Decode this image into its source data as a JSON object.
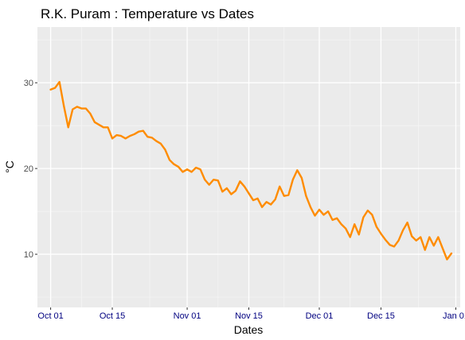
{
  "chart_data": {
    "type": "line",
    "title": "R.K. Puram : Temperature vs Dates",
    "xlabel": "Dates",
    "ylabel": "°C",
    "x_tick_labels": [
      "Oct 01",
      "Oct 15",
      "Nov 01",
      "Nov 15",
      "Dec 01",
      "Dec 15",
      "Jan 01"
    ],
    "y_tick_labels": [
      "10",
      "20",
      "30"
    ],
    "ylim": [
      3.8,
      36.5
    ],
    "xlim": [
      "2017-09-28",
      "2018-01-02"
    ],
    "grid": true,
    "series": [
      {
        "color": "#ff8c00",
        "x": [
          "2017-10-01",
          "2017-10-02",
          "2017-10-03",
          "2017-10-04",
          "2017-10-05",
          "2017-10-06",
          "2017-10-07",
          "2017-10-08",
          "2017-10-09",
          "2017-10-10",
          "2017-10-11",
          "2017-10-12",
          "2017-10-13",
          "2017-10-14",
          "2017-10-15",
          "2017-10-16",
          "2017-10-17",
          "2017-10-18",
          "2017-10-19",
          "2017-10-20",
          "2017-10-21",
          "2017-10-22",
          "2017-10-23",
          "2017-10-24",
          "2017-10-25",
          "2017-10-26",
          "2017-10-27",
          "2017-10-28",
          "2017-10-29",
          "2017-10-30",
          "2017-10-31",
          "2017-11-01",
          "2017-11-02",
          "2017-11-03",
          "2017-11-04",
          "2017-11-05",
          "2017-11-06",
          "2017-11-07",
          "2017-11-08",
          "2017-11-09",
          "2017-11-10",
          "2017-11-11",
          "2017-11-12",
          "2017-11-13",
          "2017-11-14",
          "2017-11-15",
          "2017-11-16",
          "2017-11-17",
          "2017-11-18",
          "2017-11-19",
          "2017-11-20",
          "2017-11-21",
          "2017-11-22",
          "2017-11-23",
          "2017-11-24",
          "2017-11-25",
          "2017-11-26",
          "2017-11-27",
          "2017-11-28",
          "2017-11-29",
          "2017-11-30",
          "2017-12-01",
          "2017-12-02",
          "2017-12-03",
          "2017-12-04",
          "2017-12-05",
          "2017-12-06",
          "2017-12-07",
          "2017-12-08",
          "2017-12-09",
          "2017-12-10",
          "2017-12-11",
          "2017-12-12",
          "2017-12-13",
          "2017-12-14",
          "2017-12-15",
          "2017-12-16",
          "2017-12-17",
          "2017-12-18",
          "2017-12-19",
          "2017-12-20",
          "2017-12-21",
          "2017-12-22",
          "2017-12-23",
          "2017-12-24",
          "2017-12-25",
          "2017-12-26",
          "2017-12-27",
          "2017-12-28",
          "2017-12-29",
          "2017-12-30",
          "2017-12-31"
        ],
        "values": [
          29.2,
          29.4,
          30.1,
          27.3,
          24.8,
          26.9,
          27.2,
          27.0,
          27.0,
          26.4,
          25.4,
          25.1,
          24.8,
          24.8,
          23.5,
          23.9,
          23.8,
          23.5,
          23.8,
          24.0,
          24.3,
          24.4,
          23.7,
          23.6,
          23.2,
          22.9,
          22.2,
          21.0,
          20.5,
          20.2,
          19.6,
          19.9,
          19.6,
          20.1,
          19.9,
          18.7,
          18.1,
          18.7,
          18.6,
          17.3,
          17.7,
          17.0,
          17.4,
          18.5,
          17.9,
          17.1,
          16.3,
          16.5,
          15.5,
          16.1,
          15.8,
          16.4,
          17.9,
          16.8,
          16.9,
          18.7,
          19.8,
          18.9,
          16.8,
          15.5,
          14.5,
          15.2,
          14.6,
          15.0,
          14.0,
          14.2,
          13.5,
          13.0,
          12.0,
          13.5,
          12.3,
          14.3,
          15.1,
          14.6,
          13.2,
          12.4,
          11.7,
          11.1,
          10.9,
          11.6,
          12.8,
          13.7,
          12.1,
          11.6,
          12.0,
          10.5,
          12.0,
          11.0,
          12.0,
          10.7,
          9.4,
          10.1
        ]
      }
    ]
  }
}
